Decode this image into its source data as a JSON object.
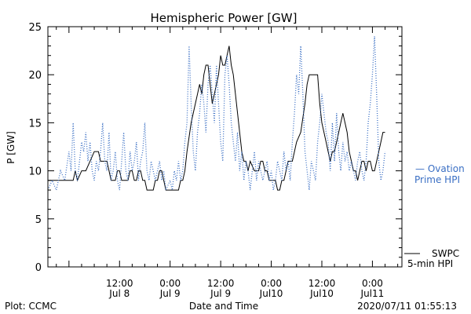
{
  "chart_data": {
    "type": "line",
    "title": "Hemispheric Power [GW]",
    "ylabel": "P [GW]",
    "xlabel": "Date and Time",
    "ylim": [
      0,
      25
    ],
    "y_ticks": [
      0,
      5,
      10,
      15,
      20,
      25
    ],
    "x_unit": "hours since 2020-07-08 00:00 UTC",
    "xlim": [
      -5,
      79
    ],
    "x_ticks": [
      {
        "x": 12,
        "time": "12:00",
        "date": "Jul 8"
      },
      {
        "x": 24,
        "time": "0:00",
        "date": "Jul 9"
      },
      {
        "x": 36,
        "time": "12:00",
        "date": "Jul 9"
      },
      {
        "x": 48,
        "time": "0:00",
        "date": "Jul10"
      },
      {
        "x": 60,
        "time": "12:00",
        "date": "Jul10"
      },
      {
        "x": 72,
        "time": "0:00",
        "date": "Jul11"
      }
    ],
    "series": [
      {
        "name": "SWPC 5-min HPI",
        "style": "solid",
        "color": "#000000",
        "points": [
          [
            -5,
            9
          ],
          [
            1,
            9
          ],
          [
            1.5,
            10
          ],
          [
            2,
            9
          ],
          [
            3,
            10
          ],
          [
            4,
            10
          ],
          [
            5,
            11
          ],
          [
            6,
            12
          ],
          [
            7,
            12
          ],
          [
            7.5,
            11
          ],
          [
            9,
            11
          ],
          [
            9.5,
            10
          ],
          [
            10,
            9
          ],
          [
            11,
            9
          ],
          [
            11.5,
            10
          ],
          [
            12,
            10
          ],
          [
            12.5,
            9
          ],
          [
            14,
            9
          ],
          [
            14.5,
            10
          ],
          [
            15,
            10
          ],
          [
            15.5,
            9
          ],
          [
            16,
            9
          ],
          [
            16.5,
            10
          ],
          [
            17,
            10
          ],
          [
            17.5,
            9
          ],
          [
            18,
            9
          ],
          [
            18.5,
            8
          ],
          [
            19,
            8
          ],
          [
            20,
            8
          ],
          [
            20.5,
            9
          ],
          [
            21,
            9
          ],
          [
            21.5,
            10
          ],
          [
            22,
            10
          ],
          [
            22.5,
            9
          ],
          [
            23,
            8
          ],
          [
            24,
            8
          ],
          [
            25,
            8
          ],
          [
            26,
            8
          ],
          [
            26.5,
            9
          ],
          [
            27,
            9
          ],
          [
            27.5,
            10
          ],
          [
            28,
            12
          ],
          [
            29,
            15
          ],
          [
            30,
            17
          ],
          [
            30.5,
            18
          ],
          [
            31,
            19
          ],
          [
            31.5,
            18
          ],
          [
            32,
            20
          ],
          [
            32.5,
            21
          ],
          [
            33,
            21
          ],
          [
            33.5,
            19
          ],
          [
            34,
            17
          ],
          [
            34.5,
            18
          ],
          [
            35,
            19
          ],
          [
            35.5,
            20
          ],
          [
            36,
            22
          ],
          [
            36.5,
            21
          ],
          [
            37,
            21
          ],
          [
            37.5,
            22
          ],
          [
            38,
            23
          ],
          [
            38.5,
            21
          ],
          [
            39,
            20
          ],
          [
            39.5,
            18
          ],
          [
            40,
            16
          ],
          [
            40.5,
            14
          ],
          [
            41,
            12
          ],
          [
            41.5,
            11
          ],
          [
            42,
            11
          ],
          [
            42.5,
            10
          ],
          [
            43,
            11
          ],
          [
            44,
            10
          ],
          [
            44.5,
            10
          ],
          [
            45,
            10
          ],
          [
            45.5,
            11
          ],
          [
            46,
            11
          ],
          [
            46.5,
            10
          ],
          [
            47,
            10
          ],
          [
            47.5,
            9
          ],
          [
            48,
            9
          ],
          [
            49,
            9
          ],
          [
            49.5,
            8
          ],
          [
            50,
            8
          ],
          [
            50.5,
            9
          ],
          [
            51,
            9
          ],
          [
            51.5,
            10
          ],
          [
            52,
            11
          ],
          [
            53,
            11
          ],
          [
            53.5,
            12
          ],
          [
            54,
            13
          ],
          [
            55,
            14
          ],
          [
            56,
            17
          ],
          [
            56.5,
            19
          ],
          [
            57,
            20
          ],
          [
            59,
            20
          ],
          [
            59.5,
            17
          ],
          [
            60,
            15
          ],
          [
            60.5,
            14
          ],
          [
            61,
            13
          ],
          [
            61.5,
            12
          ],
          [
            62,
            11
          ],
          [
            62.5,
            12
          ],
          [
            63,
            12
          ],
          [
            63.5,
            13
          ],
          [
            64,
            14
          ],
          [
            64.5,
            15
          ],
          [
            65,
            16
          ],
          [
            65.5,
            15
          ],
          [
            66,
            14
          ],
          [
            66.5,
            12
          ],
          [
            67,
            11
          ],
          [
            67.5,
            10
          ],
          [
            68,
            10
          ],
          [
            68.5,
            9
          ],
          [
            69,
            10
          ],
          [
            69.5,
            11
          ],
          [
            70,
            11
          ],
          [
            70.5,
            10
          ],
          [
            71,
            11
          ],
          [
            71.5,
            11
          ],
          [
            72,
            10
          ],
          [
            72.5,
            10
          ],
          [
            73,
            11
          ],
          [
            73.5,
            12
          ],
          [
            74,
            13
          ],
          [
            74.5,
            14
          ],
          [
            75,
            14
          ]
        ]
      },
      {
        "name": "Ovation Prime HPI",
        "style": "dotted",
        "color": "#3a6fc4",
        "points": [
          [
            -5,
            8
          ],
          [
            -4,
            9
          ],
          [
            -3,
            8
          ],
          [
            -2,
            10
          ],
          [
            -1,
            9
          ],
          [
            0,
            12
          ],
          [
            0.5,
            10
          ],
          [
            1,
            15
          ],
          [
            1.5,
            10
          ],
          [
            2,
            9
          ],
          [
            2.5,
            11
          ],
          [
            3,
            13
          ],
          [
            3.5,
            12
          ],
          [
            4,
            14
          ],
          [
            4.5,
            11
          ],
          [
            5,
            13
          ],
          [
            5.5,
            10
          ],
          [
            6,
            9
          ],
          [
            6.5,
            11
          ],
          [
            7,
            10
          ],
          [
            7.5,
            12
          ],
          [
            8,
            15
          ],
          [
            8.5,
            11
          ],
          [
            9,
            10
          ],
          [
            9.5,
            14
          ],
          [
            10,
            9
          ],
          [
            10.5,
            10
          ],
          [
            11,
            12
          ],
          [
            11.5,
            9
          ],
          [
            12,
            8
          ],
          [
            12.5,
            11
          ],
          [
            13,
            14
          ],
          [
            13.5,
            10
          ],
          [
            14,
            9
          ],
          [
            14.5,
            12
          ],
          [
            15,
            10
          ],
          [
            15.5,
            11
          ],
          [
            16,
            13
          ],
          [
            16.5,
            9
          ],
          [
            17,
            11
          ],
          [
            17.5,
            12
          ],
          [
            18,
            15
          ],
          [
            18.5,
            10
          ],
          [
            19,
            9
          ],
          [
            19.5,
            11
          ],
          [
            20,
            10
          ],
          [
            20.5,
            9
          ],
          [
            21,
            10
          ],
          [
            21.5,
            11
          ],
          [
            22,
            9
          ],
          [
            22.5,
            10
          ],
          [
            23,
            8
          ],
          [
            24,
            9
          ],
          [
            24.5,
            8
          ],
          [
            25,
            10
          ],
          [
            25.5,
            9
          ],
          [
            26,
            11
          ],
          [
            26.5,
            9
          ],
          [
            27,
            10
          ],
          [
            27.5,
            13
          ],
          [
            28,
            15
          ],
          [
            28.5,
            23
          ],
          [
            29,
            17
          ],
          [
            29.5,
            12
          ],
          [
            30,
            10
          ],
          [
            30.5,
            14
          ],
          [
            31,
            16
          ],
          [
            31.5,
            19
          ],
          [
            32,
            17
          ],
          [
            32.5,
            14
          ],
          [
            33,
            19
          ],
          [
            33.5,
            21
          ],
          [
            34,
            18
          ],
          [
            34.5,
            15
          ],
          [
            35,
            21
          ],
          [
            35.5,
            17
          ],
          [
            36,
            13
          ],
          [
            36.5,
            11
          ],
          [
            37,
            20
          ],
          [
            37.5,
            22
          ],
          [
            38,
            19
          ],
          [
            38.5,
            15
          ],
          [
            39,
            13
          ],
          [
            39.5,
            11
          ],
          [
            40,
            14
          ],
          [
            40.5,
            10
          ],
          [
            41,
            12
          ],
          [
            41.5,
            9
          ],
          [
            42,
            11
          ],
          [
            42.5,
            10
          ],
          [
            43,
            8
          ],
          [
            43.5,
            10
          ],
          [
            44,
            12
          ],
          [
            44.5,
            9
          ],
          [
            45,
            11
          ],
          [
            45.5,
            10
          ],
          [
            46,
            9
          ],
          [
            46.5,
            10
          ],
          [
            47,
            11
          ],
          [
            47.5,
            9
          ],
          [
            48,
            10
          ],
          [
            48.5,
            8
          ],
          [
            49,
            9
          ],
          [
            49.5,
            11
          ],
          [
            50,
            10
          ],
          [
            50.5,
            9
          ],
          [
            51,
            12
          ],
          [
            51.5,
            10
          ],
          [
            52,
            11
          ],
          [
            52.5,
            9
          ],
          [
            53,
            13
          ],
          [
            53.5,
            16
          ],
          [
            54,
            20
          ],
          [
            54.5,
            18
          ],
          [
            55,
            23
          ],
          [
            55.5,
            18
          ],
          [
            56,
            12
          ],
          [
            56.5,
            10
          ],
          [
            57,
            8
          ],
          [
            57.5,
            11
          ],
          [
            58,
            10
          ],
          [
            58.5,
            9
          ],
          [
            59,
            13
          ],
          [
            59.5,
            15
          ],
          [
            60,
            18
          ],
          [
            60.5,
            16
          ],
          [
            61,
            14
          ],
          [
            61.5,
            13
          ],
          [
            62,
            10
          ],
          [
            62.5,
            15
          ],
          [
            63,
            11
          ],
          [
            63.5,
            16
          ],
          [
            64,
            12
          ],
          [
            64.5,
            10
          ],
          [
            65,
            13
          ],
          [
            65.5,
            11
          ],
          [
            66,
            12
          ],
          [
            66.5,
            10
          ],
          [
            67,
            11
          ],
          [
            67.5,
            10
          ],
          [
            68,
            9
          ],
          [
            68.5,
            11
          ],
          [
            69,
            12
          ],
          [
            69.5,
            10
          ],
          [
            70,
            9
          ],
          [
            70.5,
            11
          ],
          [
            71,
            15
          ],
          [
            71.5,
            17
          ],
          [
            72,
            20
          ],
          [
            72.5,
            24
          ],
          [
            73,
            18
          ],
          [
            73.5,
            11
          ],
          [
            74,
            9
          ],
          [
            74.5,
            10
          ],
          [
            75,
            12
          ]
        ]
      }
    ],
    "legend": [
      {
        "series": "Ovation Prime HPI",
        "lines": [
          "— Ovation",
          "Prime HPI"
        ],
        "color": "#3a6fc4"
      },
      {
        "series": "SWPC 5-min HPI",
        "lines": [
          "SWPC",
          "5-min HPI"
        ],
        "color": "#000000"
      }
    ],
    "legend_placement": "right, outside plot",
    "grid": false
  },
  "footer": {
    "plot_credit": "Plot: CCMC",
    "timestamp": "2020/07/11 01:55:13"
  }
}
